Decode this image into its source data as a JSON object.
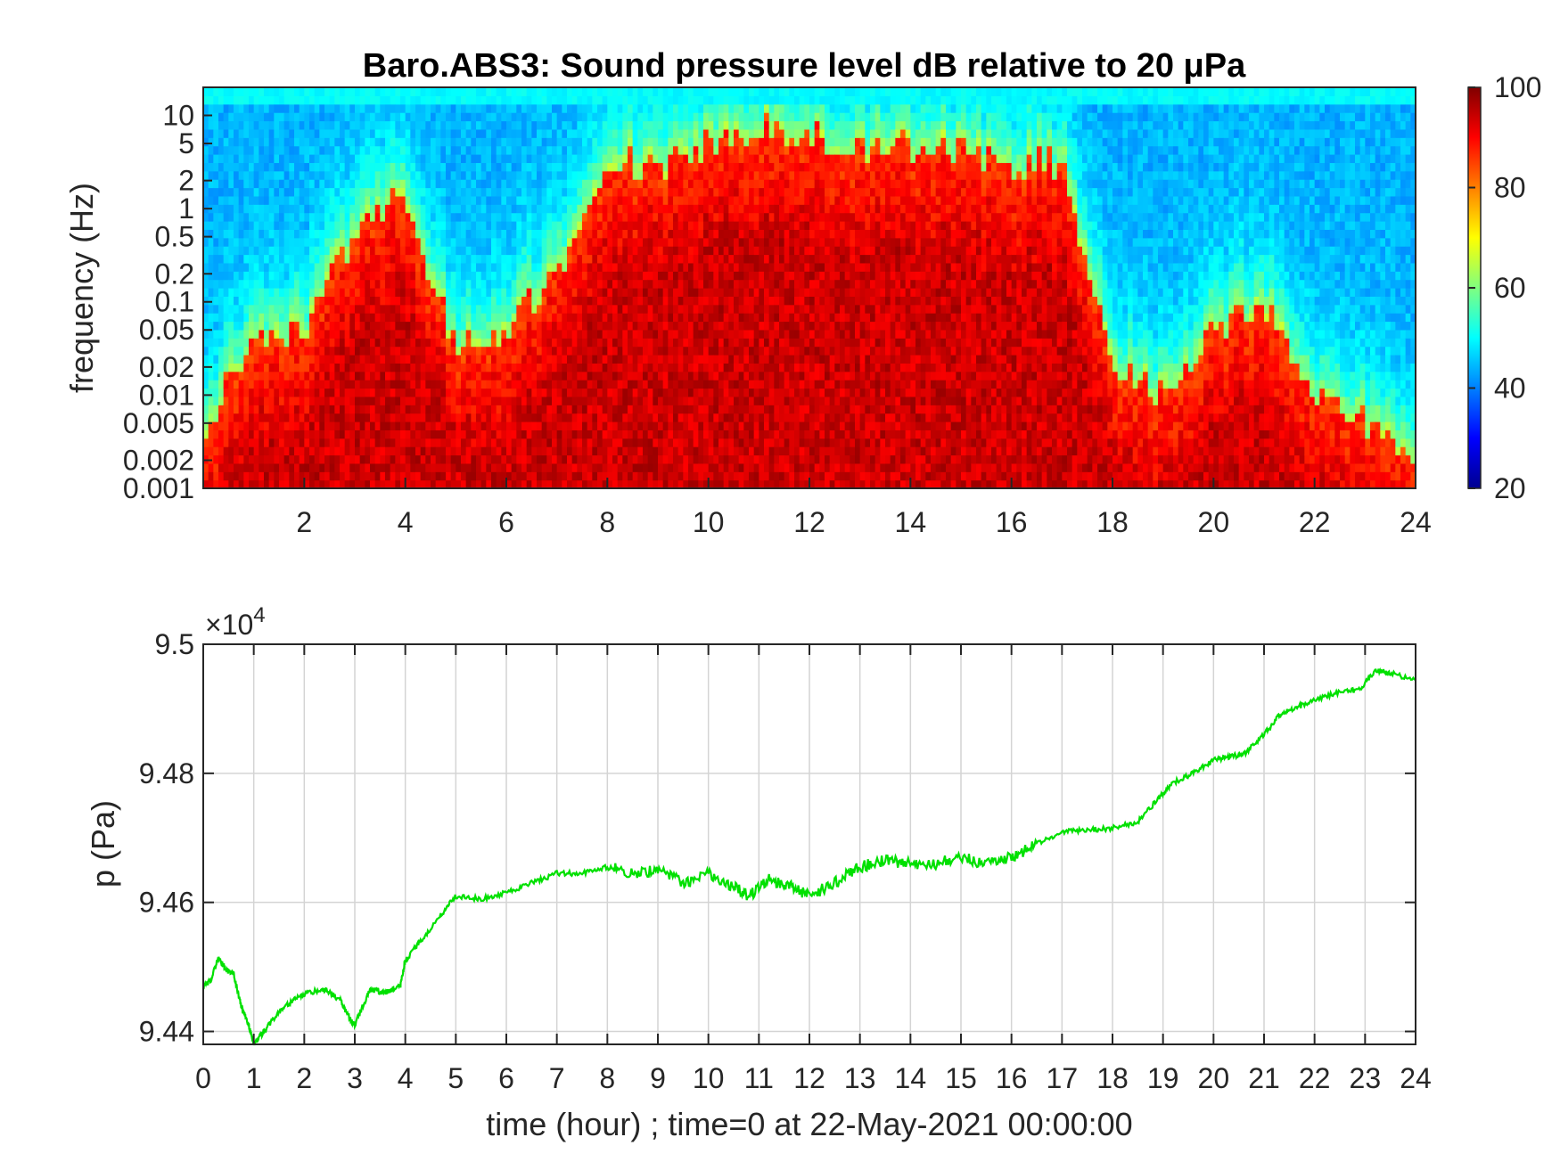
{
  "chart_data": [
    {
      "type": "heatmap",
      "title": "Baro.ABS3: Sound pressure level dB relative to 20 μPa",
      "ylabel": "frequency (Hz)",
      "xlabel": "",
      "xlim": [
        0,
        24
      ],
      "x_ticks": [
        2,
        4,
        6,
        8,
        10,
        12,
        14,
        16,
        18,
        20,
        22,
        24
      ],
      "y_scale": "log",
      "ylim": [
        0.001,
        20
      ],
      "y_ticks": [
        0.001,
        0.002,
        0.005,
        0.01,
        0.02,
        0.05,
        0.1,
        0.2,
        0.5,
        1,
        2,
        5,
        10
      ],
      "y_tick_labels": [
        "0.001",
        "0.002",
        "0.005",
        "0.01",
        "0.02",
        "0.05",
        "0.1",
        "0.2",
        "0.5",
        "1",
        "2",
        "5",
        "10"
      ],
      "colormap": "jet",
      "colorbar": {
        "min": 20,
        "max": 100,
        "ticks": [
          20,
          40,
          60,
          80,
          100
        ]
      },
      "activity_profile": {
        "description_hours": [
          0,
          1,
          2,
          3,
          4,
          5,
          6,
          7,
          8,
          9,
          10,
          11,
          12,
          13,
          14,
          15,
          16,
          17,
          18,
          19,
          20,
          21,
          22,
          23,
          24
        ],
        "upper_freq_of_high_level_hz": [
          0.005,
          0.03,
          0.05,
          0.5,
          1.5,
          0.03,
          0.05,
          0.2,
          3,
          3,
          5,
          8,
          6,
          4,
          5,
          4,
          3,
          3,
          0.02,
          0.01,
          0.05,
          0.1,
          0.01,
          0.005,
          0.002
        ]
      }
    },
    {
      "type": "line",
      "title": "",
      "xlabel": "time (hour) ; time=0 at 22-May-2021 00:00:00",
      "ylabel": "p (Pa)",
      "xlim": [
        0,
        24
      ],
      "ylim": [
        94380,
        95000
      ],
      "x_ticks": [
        0,
        1,
        2,
        3,
        4,
        5,
        6,
        7,
        8,
        9,
        10,
        11,
        12,
        13,
        14,
        15,
        16,
        17,
        18,
        19,
        20,
        21,
        22,
        23,
        24
      ],
      "y_ticks": [
        94400,
        94600,
        94800,
        95000
      ],
      "y_tick_labels": [
        "9.44",
        "9.46",
        "9.48",
        "9.5"
      ],
      "y_exponent_label": "×10",
      "y_exponent_power": "4",
      "grid": true,
      "color": "#00e000",
      "series": [
        {
          "x": [
            0,
            0.15,
            0.3,
            0.45,
            0.6,
            0.75,
            0.9,
            1.0,
            1.2,
            1.5,
            1.8,
            2.1,
            2.4,
            2.7,
            2.9,
            3.0,
            3.3,
            3.6,
            3.9,
            4.0,
            4.3,
            4.7,
            5.0,
            5.5,
            6.0,
            6.5,
            7.0,
            7.5,
            8.0,
            8.5,
            9.0,
            9.5,
            10.0,
            10.5,
            10.8,
            11.2,
            11.6,
            12.0,
            12.5,
            13.0,
            13.5,
            14.0,
            14.5,
            15.0,
            15.5,
            16.0,
            16.5,
            17.0,
            17.5,
            18.0,
            18.5,
            18.9,
            19.2,
            19.6,
            20.0,
            20.3,
            20.6,
            21.0,
            21.3,
            21.6,
            22.0,
            22.5,
            22.9,
            23.2,
            23.5,
            24.0
          ],
          "y": [
            94470,
            94480,
            94515,
            94495,
            94490,
            94440,
            94410,
            94380,
            94400,
            94430,
            94450,
            94460,
            94465,
            94450,
            94420,
            94410,
            94465,
            94460,
            94470,
            94510,
            94540,
            94580,
            94610,
            94605,
            94615,
            94630,
            94645,
            94645,
            94655,
            94645,
            94650,
            94630,
            94645,
            94625,
            94610,
            94635,
            94625,
            94610,
            94630,
            94655,
            94665,
            94660,
            94660,
            94670,
            94660,
            94670,
            94690,
            94710,
            94712,
            94715,
            94725,
            94760,
            94785,
            94800,
            94820,
            94825,
            94830,
            94860,
            94890,
            94900,
            94915,
            94925,
            94930,
            94960,
            94955,
            94945
          ]
        }
      ]
    }
  ]
}
